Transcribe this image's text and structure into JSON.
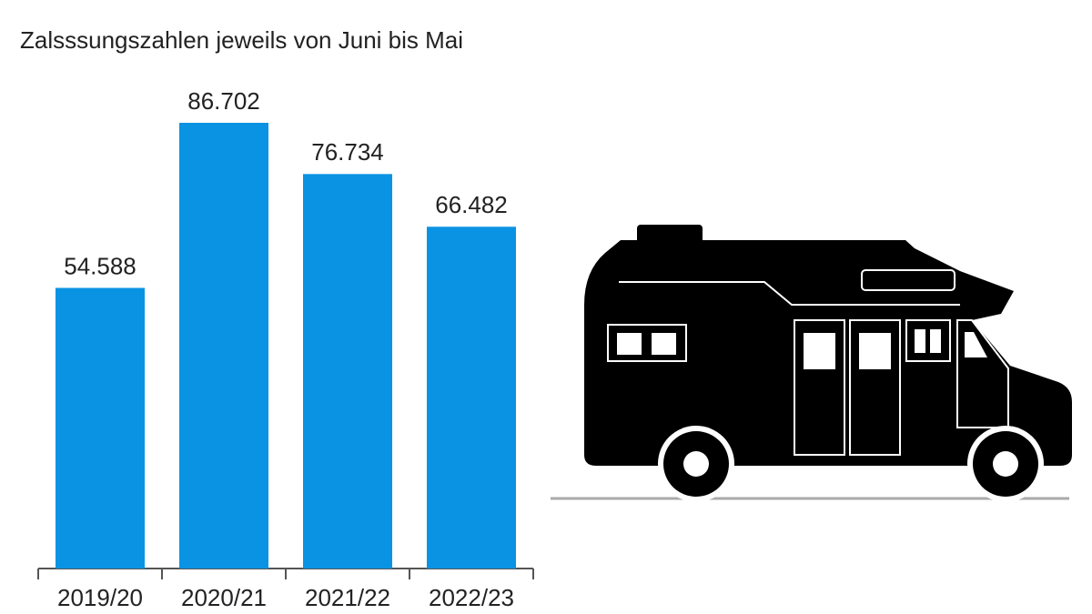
{
  "chart_data": {
    "type": "bar",
    "subtitle": "Zalsssungszahlen jeweils von Juni bis Mai",
    "categories": [
      "2019/20",
      "2020/21",
      "2021/22",
      "2022/23"
    ],
    "values": [
      54588,
      86702,
      76734,
      66482
    ],
    "value_labels": [
      "54.588",
      "86.702",
      "76.734",
      "66.482"
    ],
    "color": "#0a93e3"
  }
}
